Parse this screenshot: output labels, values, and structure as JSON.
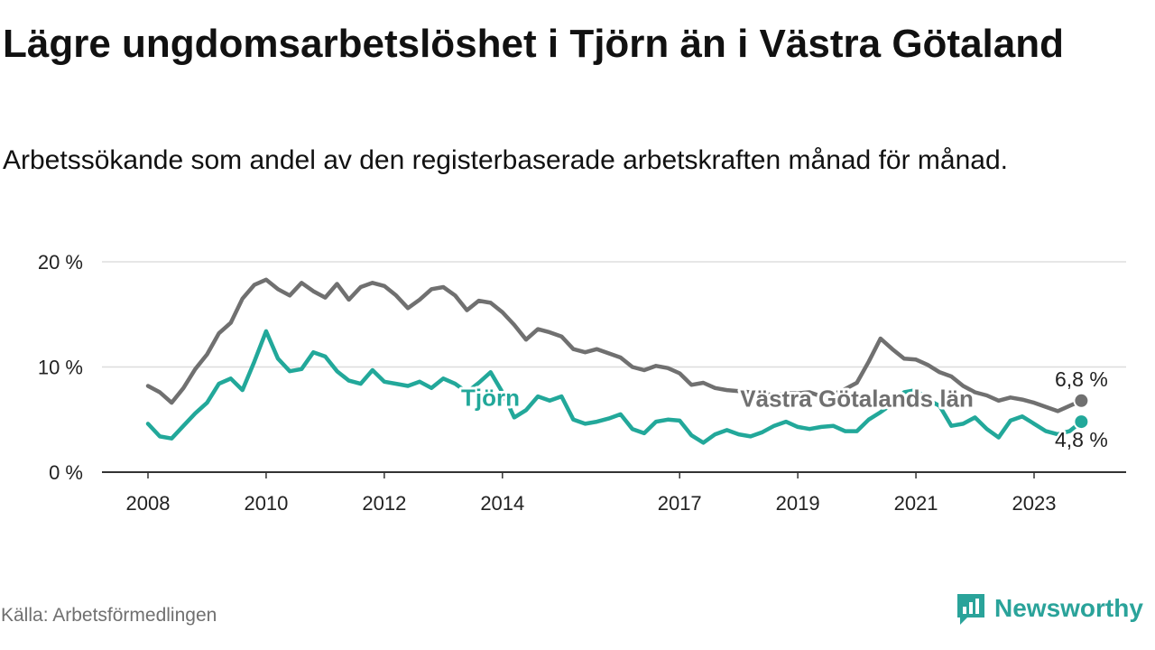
{
  "header": {
    "title": "Lägre ungdomsarbetslöshet i Tjörn än i Västra Götaland",
    "subtitle": "Arbetssökande som andel av den registerbaserade arbetskraften månad för månad."
  },
  "footer": {
    "source": "Källa: Arbetsförmedlingen",
    "brand": "Newsworthy"
  },
  "colors": {
    "tjorn": "#22a89a",
    "vastra": "#707070",
    "grid": "#dddddd",
    "axis": "#333333",
    "brand": "#2aa39a"
  },
  "chart_data": {
    "type": "line",
    "title": "Lägre ungdomsarbetslöshet i Tjörn än i Västra Götaland",
    "xlabel": "",
    "ylabel": "",
    "ylim": [
      0,
      20
    ],
    "y_ticks": [
      {
        "value": 0,
        "label": "0 %"
      },
      {
        "value": 10,
        "label": "10 %"
      },
      {
        "value": 20,
        "label": "20 %"
      }
    ],
    "x_ticks": [
      {
        "value": 2008,
        "label": "2008"
      },
      {
        "value": 2010,
        "label": "2010"
      },
      {
        "value": 2012,
        "label": "2012"
      },
      {
        "value": 2014,
        "label": "2014"
      },
      {
        "value": 2017,
        "label": "2017"
      },
      {
        "value": 2019,
        "label": "2019"
      },
      {
        "value": 2021,
        "label": "2021"
      },
      {
        "value": 2023,
        "label": "2023"
      }
    ],
    "xlim": [
      2007.5,
      2025.3
    ],
    "grid": true,
    "series": [
      {
        "name": "Västra Götalands län",
        "color_key": "vastra",
        "label": {
          "text": "Västra Götalands län",
          "x": 2020.0,
          "y": 7.0
        },
        "end_label": "6,8 %",
        "x": [
          2008.0,
          2008.2,
          2008.4,
          2008.6,
          2008.8,
          2009.0,
          2009.2,
          2009.4,
          2009.6,
          2009.8,
          2010.0,
          2010.2,
          2010.4,
          2010.6,
          2010.8,
          2011.0,
          2011.2,
          2011.4,
          2011.6,
          2011.8,
          2012.0,
          2012.2,
          2012.4,
          2012.6,
          2012.8,
          2013.0,
          2013.2,
          2013.4,
          2013.6,
          2013.8,
          2014.0,
          2014.2,
          2014.4,
          2014.6,
          2014.8,
          2015.0,
          2015.2,
          2015.4,
          2015.6,
          2015.8,
          2016.0,
          2016.2,
          2016.4,
          2016.6,
          2016.8,
          2017.0,
          2017.2,
          2017.4,
          2017.6,
          2017.8,
          2018.0,
          2018.2,
          2018.4,
          2018.6,
          2018.8,
          2019.0,
          2019.2,
          2019.4,
          2019.6,
          2019.8,
          2020.0,
          2020.2,
          2020.4,
          2020.6,
          2020.8,
          2021.0,
          2021.2,
          2021.4,
          2021.6,
          2021.8,
          2022.0,
          2022.2,
          2022.4,
          2022.6,
          2022.8,
          2023.0,
          2023.2,
          2023.4,
          2023.6,
          2023.8
        ],
        "values": [
          8.2,
          7.6,
          6.6,
          8.0,
          9.8,
          11.2,
          13.2,
          14.2,
          16.5,
          17.8,
          18.3,
          17.4,
          16.8,
          18.0,
          17.2,
          16.6,
          17.9,
          16.4,
          17.6,
          18.0,
          17.7,
          16.8,
          15.6,
          16.4,
          17.4,
          17.6,
          16.8,
          15.4,
          16.3,
          16.1,
          15.2,
          14.0,
          12.6,
          13.6,
          13.3,
          12.9,
          11.7,
          11.4,
          11.7,
          11.3,
          10.9,
          10.0,
          9.7,
          10.1,
          9.9,
          9.4,
          8.3,
          8.5,
          8.0,
          7.8,
          7.7,
          7.6,
          7.5,
          7.3,
          7.5,
          7.5,
          7.6,
          7.2,
          7.4,
          7.9,
          8.5,
          10.5,
          12.7,
          11.7,
          10.8,
          10.7,
          10.2,
          9.5,
          9.1,
          8.2,
          7.6,
          7.3,
          6.8,
          7.1,
          6.9,
          6.6,
          6.2,
          5.8,
          6.3,
          6.8
        ]
      },
      {
        "name": "Tjörn",
        "color_key": "tjorn",
        "label": {
          "text": "Tjörn",
          "x": 2013.3,
          "y": 7.1
        },
        "end_label": "4,8 %",
        "x": [
          2008.0,
          2008.2,
          2008.4,
          2008.6,
          2008.8,
          2009.0,
          2009.2,
          2009.4,
          2009.6,
          2009.8,
          2010.0,
          2010.2,
          2010.4,
          2010.6,
          2010.8,
          2011.0,
          2011.2,
          2011.4,
          2011.6,
          2011.8,
          2012.0,
          2012.2,
          2012.4,
          2012.6,
          2012.8,
          2013.0,
          2013.2,
          2013.4,
          2013.6,
          2013.8,
          2014.0,
          2014.2,
          2014.4,
          2014.6,
          2014.8,
          2015.0,
          2015.2,
          2015.4,
          2015.6,
          2015.8,
          2016.0,
          2016.2,
          2016.4,
          2016.6,
          2016.8,
          2017.0,
          2017.2,
          2017.4,
          2017.6,
          2017.8,
          2018.0,
          2018.2,
          2018.4,
          2018.6,
          2018.8,
          2019.0,
          2019.2,
          2019.4,
          2019.6,
          2019.8,
          2020.0,
          2020.2,
          2020.4,
          2020.6,
          2020.8,
          2021.0,
          2021.2,
          2021.4,
          2021.6,
          2021.8,
          2022.0,
          2022.2,
          2022.4,
          2022.6,
          2022.8,
          2023.0,
          2023.2,
          2023.4,
          2023.6,
          2023.8
        ],
        "values": [
          4.6,
          3.4,
          3.2,
          4.4,
          5.6,
          6.6,
          8.4,
          8.9,
          7.8,
          10.5,
          13.4,
          10.8,
          9.6,
          9.8,
          11.4,
          11.0,
          9.6,
          8.7,
          8.4,
          9.7,
          8.6,
          8.4,
          8.2,
          8.6,
          8.0,
          8.9,
          8.4,
          7.6,
          8.5,
          9.5,
          7.6,
          5.2,
          5.9,
          7.2,
          6.8,
          7.2,
          5.0,
          4.6,
          4.8,
          5.1,
          5.5,
          4.1,
          3.7,
          4.8,
          5.0,
          4.9,
          3.5,
          2.8,
          3.6,
          4.0,
          3.6,
          3.4,
          3.8,
          4.4,
          4.8,
          4.3,
          4.1,
          4.3,
          4.4,
          3.9,
          3.9,
          5.0,
          5.7,
          6.5,
          7.6,
          7.8,
          6.9,
          6.3,
          4.4,
          4.6,
          5.2,
          4.1,
          3.3,
          4.9,
          5.3,
          4.6,
          3.9,
          3.6,
          3.9,
          4.8
        ]
      }
    ]
  }
}
